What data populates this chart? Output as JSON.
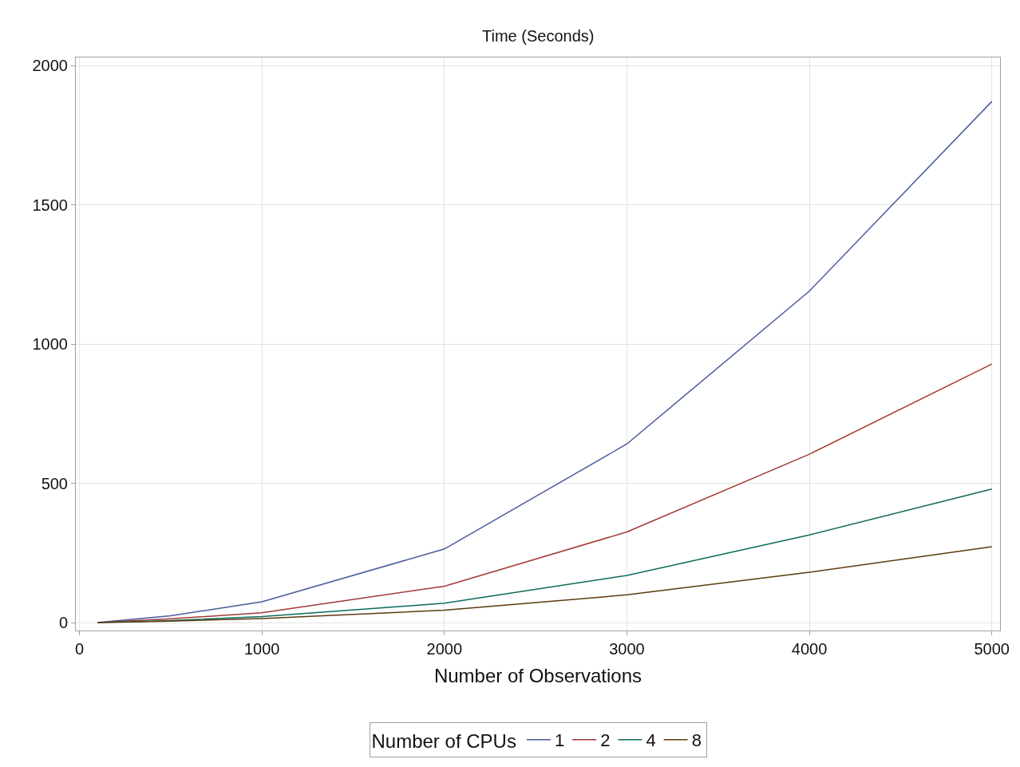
{
  "chart_data": {
    "type": "line",
    "ylabel": "Time (Seconds)",
    "xlabel": "Number of Observations",
    "legend_title": "Number of CPUs",
    "x": [
      100,
      500,
      1000,
      2000,
      3000,
      4000,
      5000
    ],
    "series": [
      {
        "name": "1",
        "color": "#4a5a9c",
        "values": [
          1,
          25,
          75,
          265,
          642,
          1191,
          1872
        ]
      },
      {
        "name": "2",
        "color": "#a23a35",
        "values": [
          1,
          14,
          36,
          131,
          326,
          605,
          929
        ]
      },
      {
        "name": "4",
        "color": "#0a6b5b",
        "values": [
          1,
          8,
          22,
          70,
          170,
          315,
          480
        ]
      },
      {
        "name": "8",
        "color": "#5c3b10",
        "values": [
          1,
          6,
          15,
          45,
          100,
          181,
          273
        ]
      }
    ],
    "xlim": [
      -20,
      5045
    ],
    "ylim": [
      -28,
      2030
    ],
    "xticks": [
      0,
      1000,
      2000,
      3000,
      4000,
      5000
    ],
    "yticks": [
      0,
      500,
      1000,
      1500,
      2000
    ],
    "grid": true,
    "legend": "bottom",
    "line_style": "solid",
    "marker": "none"
  }
}
